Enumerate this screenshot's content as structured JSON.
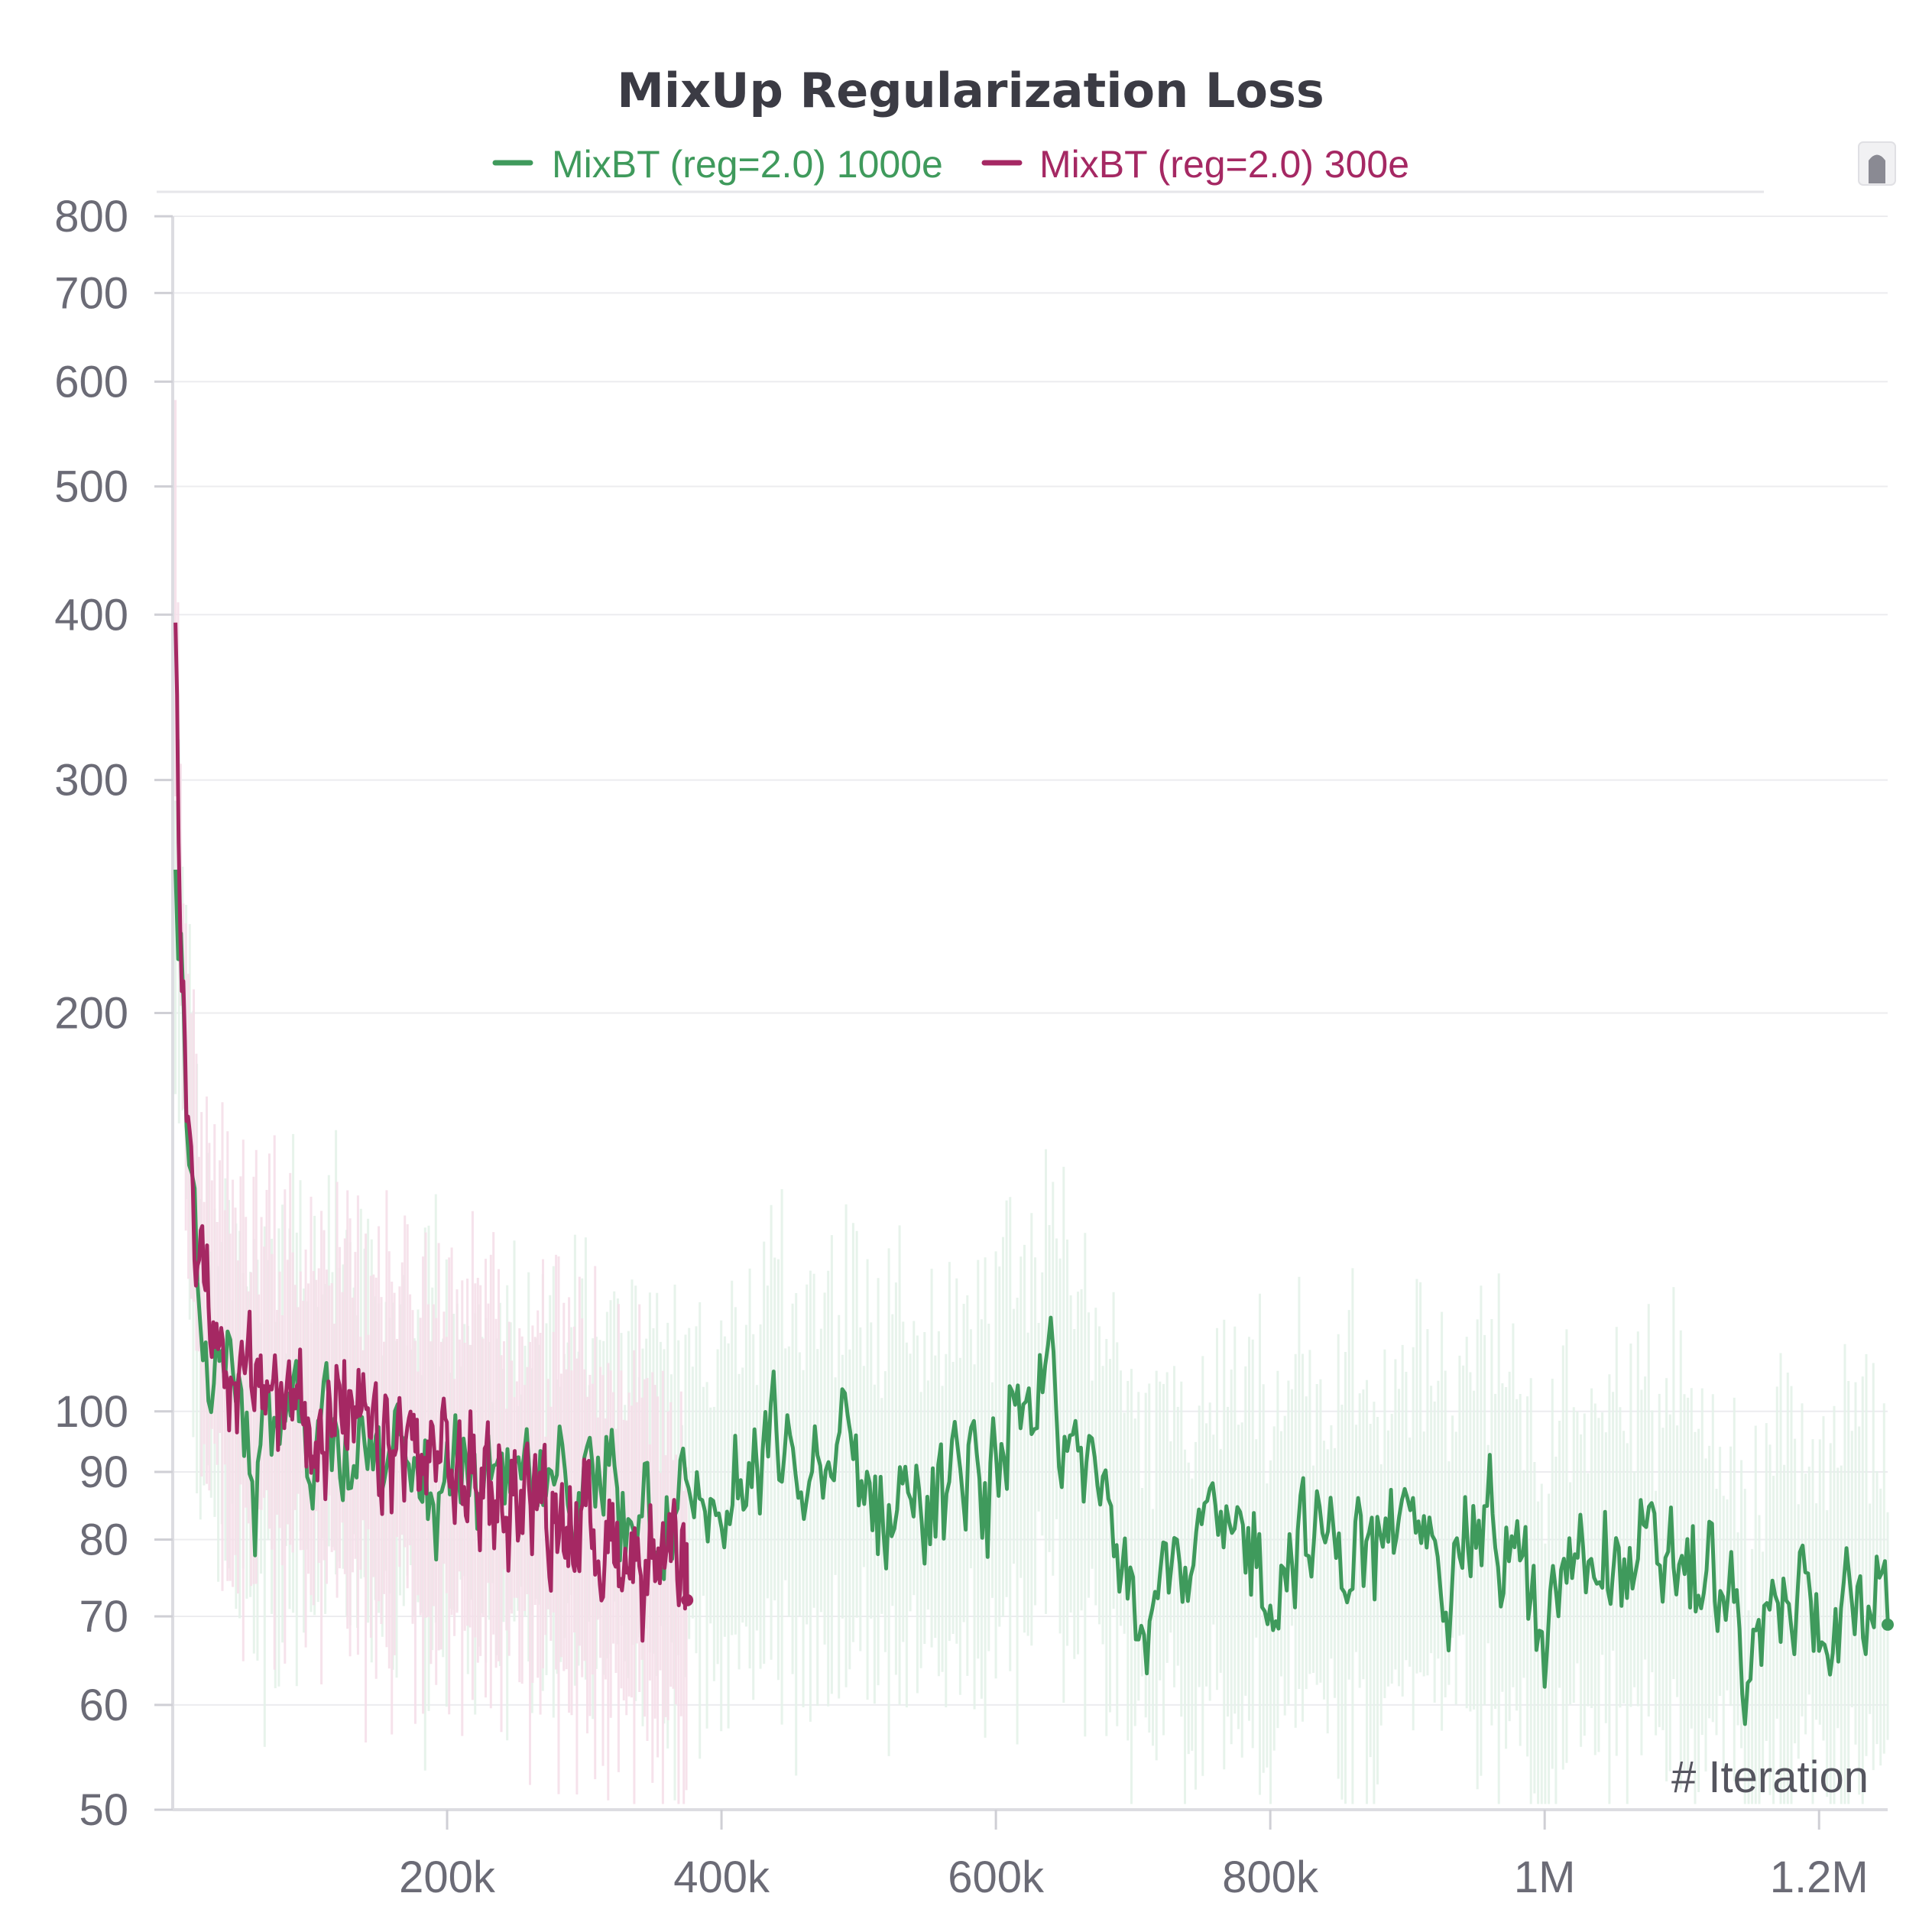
{
  "chart_data": {
    "type": "line",
    "title": "MixUp Regularization Loss",
    "xlabel": "# Iteration",
    "ylabel": "",
    "yscale": "log",
    "xlim": [
      0,
      1250000
    ],
    "ylim": [
      50,
      800
    ],
    "x_ticks": [
      200000,
      400000,
      600000,
      800000,
      1000000,
      1200000
    ],
    "x_tick_labels": [
      "200k",
      "400k",
      "600k",
      "800k",
      "1M",
      "1.2M"
    ],
    "y_ticks": [
      50,
      60,
      70,
      80,
      90,
      100,
      200,
      300,
      400,
      500,
      600,
      700,
      800
    ],
    "y_tick_labels": [
      "50",
      "60",
      "70",
      "80",
      "90",
      "100",
      "200",
      "300",
      "400",
      "500",
      "600",
      "700",
      "800"
    ],
    "grid": true,
    "legend_position": "top-center",
    "series": [
      {
        "name": "MixBT (reg=2.0) 1000e",
        "color": "#3f9a5c",
        "raw_color": "#e4f2e9",
        "x": [
          2000,
          5000,
          8000,
          12000,
          16000,
          20000,
          25000,
          30000,
          40000,
          50000,
          60000,
          70000,
          80000,
          90000,
          100000,
          110000,
          120000,
          130000,
          140000,
          150000,
          160000,
          170000,
          180000,
          190000,
          200000,
          210000,
          220000,
          230000,
          240000,
          250000,
          260000,
          270000,
          280000,
          290000,
          300000,
          310000,
          320000,
          330000,
          340000,
          350000,
          360000,
          370000,
          380000,
          390000,
          400000,
          410000,
          420000,
          430000,
          440000,
          450000,
          460000,
          470000,
          480000,
          490000,
          500000,
          510000,
          520000,
          530000,
          540000,
          550000,
          560000,
          570000,
          580000,
          590000,
          600000,
          610000,
          620000,
          630000,
          640000,
          650000,
          660000,
          670000,
          680000,
          690000,
          700000,
          710000,
          720000,
          730000,
          740000,
          750000,
          760000,
          770000,
          780000,
          790000,
          800000,
          810000,
          820000,
          830000,
          840000,
          850000,
          860000,
          870000,
          880000,
          890000,
          900000,
          910000,
          920000,
          930000,
          940000,
          950000,
          960000,
          970000,
          980000,
          990000,
          1000000,
          1010000,
          1020000,
          1030000,
          1040000,
          1050000,
          1060000,
          1070000,
          1080000,
          1090000,
          1100000,
          1110000,
          1120000,
          1130000,
          1140000,
          1150000,
          1160000,
          1170000,
          1180000,
          1190000,
          1200000,
          1210000,
          1220000,
          1230000,
          1240000,
          1250000
        ],
        "values": [
          240,
          215,
          190,
          165,
          140,
          120,
          110,
          108,
          104,
          95,
          88,
          98,
          92,
          104,
          96,
          100,
          103,
          94,
          97,
          90,
          88,
          95,
          85,
          92,
          87,
          90,
          86,
          89,
          84,
          88,
          86,
          87,
          84,
          89,
          87,
          85,
          90,
          84,
          88,
          86,
          85,
          83,
          86,
          84,
          82,
          87,
          85,
          88,
          96,
          90,
          86,
          92,
          88,
          94,
          90,
          86,
          84,
          89,
          87,
          85,
          83,
          88,
          90,
          86,
          92,
          98,
          90,
          95,
          112,
          94,
          88,
          90,
          85,
          84,
          78,
          72,
          76,
          80,
          74,
          78,
          82,
          76,
          80,
          79,
          74,
          77,
          82,
          78,
          80,
          76,
          82,
          79,
          77,
          81,
          79,
          82,
          80,
          78,
          84,
          80,
          82,
          79,
          77,
          72,
          62,
          74,
          78,
          76,
          80,
          79,
          76,
          78,
          74,
          80,
          77,
          75,
          74,
          73,
          70,
          59,
          68,
          72,
          70,
          73,
          71,
          69,
          72,
          70,
          73,
          69
        ],
        "end_value": 69
      },
      {
        "name": "MixBT (reg=2.0) 300e",
        "color": "#a52863",
        "raw_color": "#f5dfe9",
        "x": [
          2000,
          5000,
          8000,
          12000,
          16000,
          20000,
          25000,
          30000,
          40000,
          50000,
          60000,
          70000,
          80000,
          90000,
          100000,
          110000,
          120000,
          130000,
          140000,
          150000,
          160000,
          170000,
          180000,
          190000,
          200000,
          210000,
          220000,
          230000,
          240000,
          250000,
          260000,
          270000,
          280000,
          290000,
          300000,
          310000,
          320000,
          330000,
          340000,
          350000,
          360000,
          370000,
          375000
        ],
        "values": [
          380,
          250,
          200,
          165,
          145,
          130,
          122,
          118,
          110,
          105,
          102,
          106,
          100,
          104,
          98,
          101,
          99,
          97,
          95,
          94,
          92,
          96,
          90,
          93,
          91,
          89,
          90,
          88,
          87,
          86,
          88,
          84,
          85,
          83,
          82,
          81,
          80,
          79,
          78,
          77,
          76,
          73,
          72
        ],
        "end_value": 72
      }
    ]
  }
}
